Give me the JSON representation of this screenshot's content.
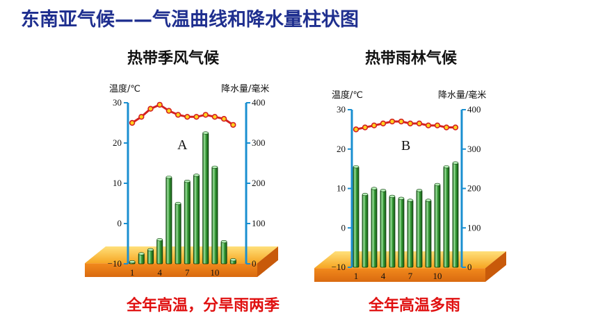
{
  "header": {
    "title": "东南亚气候——气温曲线和降水量柱状图"
  },
  "charts": [
    {
      "title": "热带季风气候",
      "conclusion": "全年高温，分旱雨两季"
    },
    {
      "title": "热带雨林气候",
      "conclusion": "全年高温多雨"
    }
  ],
  "colors": {
    "title": "#1f2f8f",
    "conclusion": "#e01010",
    "bar": "#2e8b2e",
    "line": "#d42020",
    "axis": "#1a8fd0",
    "base": "#f29a1e"
  },
  "chart_data": [
    {
      "type": "bar",
      "letter": "A",
      "months": [
        1,
        2,
        3,
        4,
        5,
        6,
        7,
        8,
        9,
        10,
        11,
        12
      ],
      "x_tick_labels": [
        "1",
        "4",
        "7",
        "10"
      ],
      "series": [
        {
          "name": "降水量",
          "axis": "right",
          "values": [
            5,
            25,
            35,
            60,
            215,
            150,
            205,
            220,
            325,
            240,
            55,
            10
          ]
        },
        {
          "name": "气温",
          "axis": "left",
          "type": "line",
          "values": [
            25,
            26.5,
            28.5,
            29.5,
            28,
            27,
            26.5,
            26.5,
            27,
            26.5,
            26,
            24.5
          ]
        }
      ],
      "left_axis": {
        "label": "温度/℃",
        "ticks": [
          "30",
          "20",
          "10",
          "0",
          "−10"
        ],
        "range": [
          -10,
          30
        ]
      },
      "right_axis": {
        "label": "降水量/毫米",
        "ticks": [
          "400",
          "300",
          "200",
          "100",
          "0"
        ],
        "range": [
          0,
          400
        ]
      }
    },
    {
      "type": "bar",
      "letter": "B",
      "months": [
        1,
        2,
        3,
        4,
        5,
        6,
        7,
        8,
        9,
        10,
        11,
        12
      ],
      "x_tick_labels": [
        "1",
        "4",
        "7",
        "10"
      ],
      "series": [
        {
          "name": "降水量",
          "axis": "right",
          "values": [
            255,
            185,
            200,
            195,
            180,
            175,
            170,
            195,
            170,
            210,
            255,
            265
          ]
        },
        {
          "name": "气温",
          "axis": "left",
          "type": "line",
          "values": [
            25,
            25.5,
            26,
            26.5,
            27,
            27,
            26.5,
            26.5,
            26,
            26,
            25.5,
            25.5
          ]
        }
      ],
      "left_axis": {
        "label": "温度/℃",
        "ticks": [
          "30",
          "20",
          "10",
          "0",
          "−10"
        ],
        "range": [
          -10,
          30
        ]
      },
      "right_axis": {
        "label": "降水量/毫米",
        "ticks": [
          "400",
          "300",
          "200",
          "100",
          "0"
        ],
        "range": [
          0,
          400
        ]
      }
    }
  ]
}
